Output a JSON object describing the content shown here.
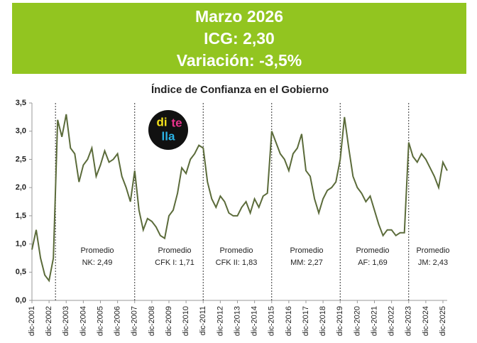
{
  "chart_data": {
    "type": "line",
    "header": [
      "Marzo 2026",
      "ICG: 2,30",
      "Variación: -3,5%"
    ],
    "title": "Índice de Confianza en el Gobierno",
    "logo": [
      "di",
      "te",
      "lla"
    ],
    "categories": [
      "dic-2001",
      null,
      null,
      null,
      "dic-2002",
      null,
      null,
      null,
      "dic-2003",
      null,
      null,
      null,
      "dic-2004",
      null,
      null,
      null,
      "dic-2005",
      null,
      null,
      null,
      "dic-2006",
      null,
      null,
      null,
      "dic-2007",
      null,
      null,
      null,
      "dic-2008",
      null,
      null,
      null,
      "dic-2009",
      null,
      null,
      null,
      "dic-2010",
      null,
      null,
      null,
      "dic-2011",
      null,
      null,
      null,
      "dic-2012",
      null,
      null,
      null,
      "dic-2013",
      null,
      null,
      null,
      "dic-2014",
      null,
      null,
      null,
      "dic-2015",
      null,
      null,
      null,
      "dic-2016",
      null,
      null,
      null,
      "dic-2017",
      null,
      null,
      null,
      "dic-2018",
      null,
      null,
      null,
      "dic-2019",
      null,
      null,
      null,
      "dic-2020",
      null,
      null,
      null,
      "dic-2021",
      null,
      null,
      null,
      "dic-2022",
      null,
      null,
      null,
      "dic-2023",
      null,
      null,
      null,
      "dic-2024",
      null,
      null,
      null,
      "dic-2025",
      null
    ],
    "values": [
      0.9,
      1.25,
      0.75,
      0.45,
      0.35,
      0.75,
      3.2,
      2.9,
      3.3,
      2.7,
      2.6,
      2.1,
      2.4,
      2.5,
      2.7,
      2.2,
      2.4,
      2.65,
      2.45,
      2.5,
      2.6,
      2.2,
      2.0,
      1.75,
      2.3,
      1.6,
      1.25,
      1.45,
      1.4,
      1.3,
      1.15,
      1.1,
      1.5,
      1.6,
      1.9,
      2.35,
      2.25,
      2.5,
      2.6,
      2.75,
      2.7,
      2.1,
      1.8,
      1.65,
      1.85,
      1.75,
      1.55,
      1.5,
      1.5,
      1.65,
      1.75,
      1.55,
      1.8,
      1.65,
      1.85,
      1.9,
      3.0,
      2.8,
      2.6,
      2.5,
      2.3,
      2.6,
      2.7,
      2.95,
      2.3,
      2.2,
      1.8,
      1.55,
      1.8,
      1.95,
      2.0,
      2.1,
      2.5,
      3.25,
      2.7,
      2.2,
      2.0,
      1.9,
      1.75,
      1.85,
      1.6,
      1.35,
      1.15,
      1.25,
      1.25,
      1.15,
      1.2,
      1.2,
      2.8,
      2.55,
      2.45,
      2.6,
      2.5,
      2.35,
      2.2,
      2.0,
      2.45,
      2.3
    ],
    "color": "#5b6b3a",
    "ylim": [
      0,
      3.5
    ],
    "yticks": [
      {
        "value": 0,
        "label": "0,0"
      },
      {
        "value": 0.5,
        "label": "0,5"
      },
      {
        "value": 1,
        "label": "1,0"
      },
      {
        "value": 1.5,
        "label": "1,5"
      },
      {
        "value": 2,
        "label": "2,0"
      },
      {
        "value": 2.5,
        "label": "2,5"
      },
      {
        "value": 3,
        "label": "3,0"
      },
      {
        "value": 3.5,
        "label": "3,5"
      }
    ],
    "annotations": [
      [
        "Promedio",
        "NK: 2,49"
      ],
      [
        "Promedio",
        "CFK I: 1,71"
      ],
      [
        "Promedio",
        "CFK II: 1,83"
      ],
      [
        "Promedio",
        "MM: 2,27"
      ],
      [
        "Promedio",
        "AF: 1,69"
      ],
      [
        "Promedio",
        "JM: 2,43"
      ]
    ]
  }
}
